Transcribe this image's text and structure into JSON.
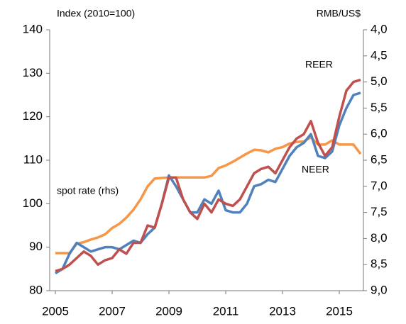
{
  "chart_data": {
    "type": "line",
    "y_label": "Index (2010=100)",
    "y2_label": "RMB/US$",
    "x": [
      2005.0,
      2005.25,
      2005.5,
      2005.75,
      2006.0,
      2006.25,
      2006.5,
      2006.75,
      2007.0,
      2007.25,
      2007.5,
      2007.75,
      2008.0,
      2008.25,
      2008.5,
      2008.75,
      2009.0,
      2009.25,
      2009.5,
      2009.75,
      2010.0,
      2010.25,
      2010.5,
      2010.75,
      2011.0,
      2011.25,
      2011.5,
      2011.75,
      2012.0,
      2012.25,
      2012.5,
      2012.75,
      2013.0,
      2013.25,
      2013.5,
      2013.75,
      2014.0,
      2014.25,
      2014.5,
      2014.75,
      2015.0,
      2015.25,
      2015.5,
      2015.75
    ],
    "series": [
      {
        "name": "NEER",
        "color": "#4f81bd",
        "values": [
          84,
          85,
          88.5,
          91,
          90,
          89,
          89.5,
          90,
          90,
          89.5,
          90.5,
          91.5,
          91,
          93,
          94.5,
          100,
          106.5,
          104,
          101,
          98,
          98,
          101,
          100,
          103,
          98.5,
          98,
          98,
          100,
          104,
          104.5,
          105.5,
          105,
          108,
          111,
          113,
          114,
          116,
          111,
          110.5,
          112,
          118,
          122,
          125,
          125.5
        ]
      },
      {
        "name": "REER",
        "color": "#c0504d",
        "values": [
          84.5,
          85,
          86,
          87.5,
          89,
          88,
          86,
          87,
          87.5,
          89.5,
          88.5,
          91,
          91,
          95,
          94.5,
          100,
          106,
          106,
          101,
          98,
          96.5,
          100,
          98,
          101,
          100,
          99.5,
          101,
          104,
          107,
          108,
          108.5,
          107,
          110,
          113,
          115,
          116,
          119,
          114,
          111,
          113,
          120,
          126,
          128,
          128.5
        ]
      },
      {
        "name": "spot rate (rhs)",
        "color": "#f79646",
        "axis": "y2",
        "values": [
          8.28,
          8.28,
          8.28,
          8.1,
          8.07,
          8.02,
          7.98,
          7.92,
          7.8,
          7.72,
          7.6,
          7.45,
          7.25,
          7.0,
          6.85,
          6.84,
          6.83,
          6.83,
          6.83,
          6.83,
          6.83,
          6.83,
          6.8,
          6.65,
          6.6,
          6.53,
          6.45,
          6.37,
          6.3,
          6.31,
          6.35,
          6.28,
          6.25,
          6.18,
          6.15,
          6.14,
          6.06,
          6.2,
          6.2,
          6.12,
          6.2,
          6.2,
          6.2,
          6.38
        ]
      }
    ],
    "xlim": [
      2004.8,
      2015.85
    ],
    "xticks": [
      2005,
      2007,
      2009,
      2011,
      2013,
      2015
    ],
    "ylim": [
      80,
      140
    ],
    "yticks": [
      80,
      90,
      100,
      110,
      120,
      130,
      140
    ],
    "y2lim": [
      9.0,
      4.0
    ],
    "y2ticks": [
      {
        "value": 4.0,
        "label": "4,0"
      },
      {
        "value": 4.5,
        "label": "4,5"
      },
      {
        "value": 5.0,
        "label": "5,0"
      },
      {
        "value": 5.5,
        "label": "5,5"
      },
      {
        "value": 6.0,
        "label": "6,0"
      },
      {
        "value": 6.5,
        "label": "6,5"
      },
      {
        "value": 7.0,
        "label": "7,0"
      },
      {
        "value": 7.5,
        "label": "7,5"
      },
      {
        "value": 8.0,
        "label": "8,0"
      },
      {
        "value": 8.5,
        "label": "8,5"
      },
      {
        "value": 9.0,
        "label": "9,0"
      }
    ],
    "grid": false
  }
}
